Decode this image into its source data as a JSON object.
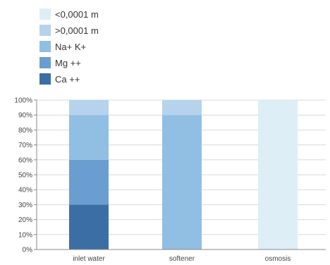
{
  "chart_data": {
    "type": "bar",
    "stacked": true,
    "categories": [
      "inlet water",
      "softener",
      "osmosis"
    ],
    "series": [
      {
        "name": "Ca ++",
        "color": "#3b6ea5",
        "values": [
          30,
          0,
          0
        ]
      },
      {
        "name": "Mg ++",
        "color": "#6a9ed0",
        "values": [
          30,
          0,
          0
        ]
      },
      {
        "name": "Na+ K+",
        "color": "#90bfe3",
        "values": [
          30,
          90,
          0
        ]
      },
      {
        "name": ">0,0001 m",
        "color": "#b5d3ec",
        "values": [
          10,
          10,
          0
        ]
      },
      {
        "name": "<0,0001 m",
        "color": "#ddeef7",
        "values": [
          0,
          0,
          100
        ]
      }
    ],
    "legend_order": [
      "<0,0001 m",
      ">0,0001 m",
      "Na+ K+",
      "Mg ++",
      "Ca ++"
    ],
    "legend_position": "top-left",
    "ylim": [
      0,
      100
    ],
    "yticks": [
      "0%",
      "10%",
      "20%",
      "30%",
      "40%",
      "50%",
      "60%",
      "70%",
      "80%",
      "90%",
      "100%"
    ],
    "grid": true,
    "title": "",
    "xlabel": "",
    "ylabel": ""
  }
}
